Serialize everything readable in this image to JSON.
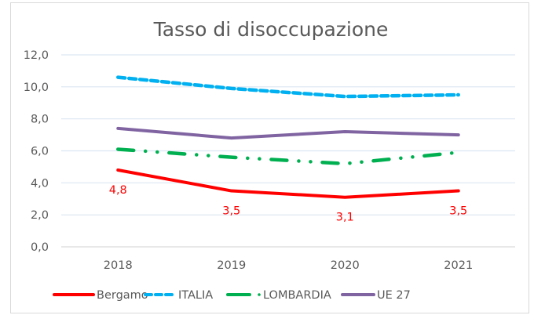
{
  "chart_data": {
    "type": "line",
    "title": "Tasso di disoccupazione",
    "xlabel": "",
    "ylabel": "",
    "categories": [
      "2018",
      "2019",
      "2020",
      "2021"
    ],
    "ylim": [
      0,
      12
    ],
    "yticks": [
      0,
      2,
      4,
      6,
      8,
      10,
      12
    ],
    "ytick_labels": [
      "0,0",
      "2,0",
      "4,0",
      "6,0",
      "8,0",
      "10,0",
      "12,0"
    ],
    "grid": true,
    "legend_position": "bottom",
    "series": [
      {
        "name": "Bergamo",
        "values": [
          4.8,
          3.5,
          3.1,
          3.5
        ],
        "data_labels": [
          "4,8",
          "3,5",
          "3,1",
          "3,5"
        ],
        "color": "#ff0000",
        "style": "solid"
      },
      {
        "name": "ITALIA",
        "values": [
          10.6,
          9.9,
          9.4,
          9.5
        ],
        "color": "#00b0f0",
        "style": "dashed"
      },
      {
        "name": "LOMBARDIA",
        "values": [
          6.1,
          5.6,
          5.2,
          5.9
        ],
        "color": "#00b050",
        "style": "dash-dot-dot"
      },
      {
        "name": "UE 27",
        "values": [
          7.4,
          6.8,
          7.2,
          7.0
        ],
        "color": "#8064a2",
        "style": "solid"
      }
    ]
  }
}
